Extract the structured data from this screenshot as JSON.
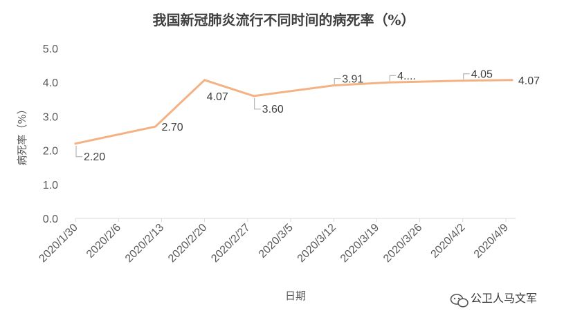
{
  "watermark": {
    "text": "公卫人马文军",
    "icon": "wechat-icon"
  },
  "chart_data": {
    "type": "line",
    "title": "我国新冠肺炎流行不同时间的病死率（%）",
    "xlabel": "日期",
    "ylabel": "病死率（%）",
    "x_tick_labels": [
      "2020/1/30",
      "2020/2/6",
      "2020/2/13",
      "2020/2/20",
      "2020/2/27",
      "2020/3/5",
      "2020/3/12",
      "2020/3/19",
      "2020/3/26",
      "2020/4/2",
      "2020/4/9"
    ],
    "ylim": [
      0,
      5
    ],
    "y_ticks": [
      "0.0",
      "1.0",
      "2.0",
      "3.0",
      "4.0",
      "5.0"
    ],
    "grid": false,
    "legend": "none",
    "line_color": "#f4b183",
    "x": [
      "2020/1/30",
      "2020/2/12",
      "2020/2/20",
      "2020/2/28",
      "2020/3/12",
      "2020/3/21",
      "2020/4/2",
      "2020/4/10"
    ],
    "values": [
      2.2,
      2.7,
      4.07,
      3.6,
      3.91,
      4.0,
      4.05,
      4.07
    ],
    "data_labels": [
      "2.20",
      "2.70",
      "4.07",
      "3.60",
      "3.91",
      "4....",
      "4.05",
      "4.07"
    ]
  }
}
